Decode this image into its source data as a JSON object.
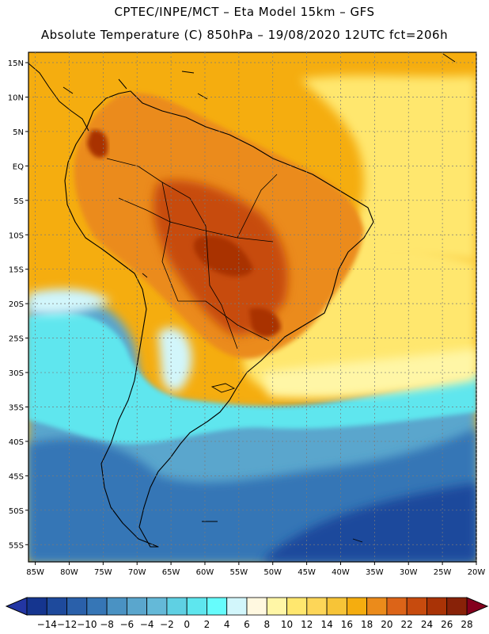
{
  "header": {
    "line1": "CPTEC/INPE/MCT –   Eta Model 15km – GFS",
    "line2": "Absolute Temperature (C) 850hPa – 19/08/2020 12UTC fct=206h"
  },
  "map": {
    "lat_labels": [
      "15N",
      "10N",
      "5N",
      "EQ",
      "5S",
      "10S",
      "15S",
      "20S",
      "25S",
      "30S",
      "35S",
      "40S",
      "45S",
      "50S",
      "55S"
    ],
    "lon_labels": [
      "85W",
      "80W",
      "75W",
      "70W",
      "65W",
      "60W",
      "55W",
      "50W",
      "45W",
      "40W",
      "35W",
      "30W",
      "25W",
      "20W"
    ],
    "lat_values": [
      15,
      10,
      5,
      0,
      -5,
      -10,
      -15,
      -20,
      -25,
      -30,
      -35,
      -40,
      -45,
      -50,
      -55
    ],
    "lon_values": [
      -85,
      -80,
      -75,
      -70,
      -65,
      -60,
      -55,
      -50,
      -45,
      -40,
      -35,
      -30,
      -25,
      -20
    ],
    "extent": {
      "west": -86,
      "east": -20,
      "north": 16.5,
      "south": -57.5
    }
  },
  "colorbar": {
    "labels": [
      "-14",
      "-12",
      "-10",
      "-8",
      "-6",
      "-4",
      "-2",
      "0",
      "2",
      "4",
      "6",
      "8",
      "10",
      "12",
      "14",
      "16",
      "18",
      "20",
      "22",
      "24",
      "26",
      "28"
    ],
    "colors": [
      "#15358f",
      "#1e4a9c",
      "#2a60aa",
      "#3676b6",
      "#4a92c3",
      "#5aa6cd",
      "#64b9d8",
      "#5fd0e3",
      "#5ee6ee",
      "#66fcfc",
      "#d2f6fb",
      "#fff8e0",
      "#fff6a6",
      "#ffe76e",
      "#fdd658",
      "#f7c437",
      "#f5ad0f",
      "#eb8b1b",
      "#dc6418",
      "#c74b0e",
      "#a93306",
      "#882208"
    ],
    "under_color": "#2336a3",
    "over_color": "#84001d"
  },
  "fields": {
    "ocean_warm": "#f5ad0f",
    "land_warm": "#eb8b1b",
    "hot_core": "#c74b0e",
    "hottest": "#a93306",
    "subtropical": "#ffe76e",
    "pale": "#fff6a6",
    "cyan": "#5ee6ee",
    "mid_blue": "#5aa6cd",
    "blue": "#3676b6",
    "deep_blue": "#1e4a9c",
    "ice": "#d2f6fb"
  }
}
